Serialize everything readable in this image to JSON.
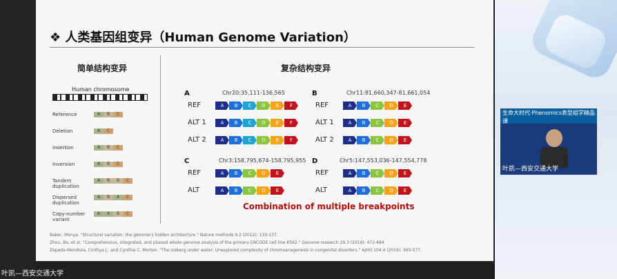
{
  "slide": {
    "title": "❖ 人类基因组变异（Human Genome Variation）",
    "left_heading": "简单结构变异",
    "right_heading": "复杂结构变异",
    "chromosome_label": "Human chromosome",
    "sv_rows": [
      {
        "label": "Reference",
        "segs": [
          "A",
          "B",
          "C"
        ]
      },
      {
        "label": "Deletion",
        "segs": [
          "A",
          "C"
        ]
      },
      {
        "label": "Insertion",
        "segs": [
          "A",
          "B",
          "C"
        ]
      },
      {
        "label": "Inversion",
        "segs": [
          "A",
          "B",
          "C"
        ]
      },
      {
        "label": "Tandem duplication",
        "segs": [
          "A",
          "B",
          "B",
          "C"
        ]
      },
      {
        "label": "Dispersed duplication",
        "segs": [
          "A",
          "B",
          "A",
          "C"
        ]
      },
      {
        "label": "Copy-number variant",
        "segs": [
          "A",
          "A",
          "B",
          "C"
        ]
      }
    ],
    "panels": {
      "A": {
        "coord": "Chr20:35,111-136,565",
        "rows": [
          "REF",
          "ALT 1",
          "ALT 2"
        ]
      },
      "B": {
        "coord": "Chr11:81,660,347-81,661,054",
        "rows": [
          "REF",
          "ALT 1",
          "ALT 2"
        ]
      },
      "C": {
        "coord": "Chr3:158,795,674-158,795,955",
        "rows": [
          "REF",
          "ALT"
        ]
      },
      "D": {
        "coord": "Chr5:147,553,036-147,554,778",
        "rows": [
          "REF",
          "ALT"
        ]
      }
    },
    "combination_text": "Combination of multiple breakpoints",
    "references": [
      "Baker, Monya. \"Structural variation: the genome's hidden architecture.\" Nature methods 9.2 (2012): 133-137.",
      "Zhou, Bo, et al. \"Comprehensive, integrated, and phased whole-genome analysis of the primary ENCODE cell line K562.\" Genome research 29.3 (2019): 472-484",
      "Zepeda-Mendoza, Cinthya J., and Cynthia C. Morton. \"The iceberg under water: Unexplored complexity of chromoanagenesis in congenital disorders.\" AJHG 104.4 (2019): 565-577."
    ]
  },
  "video": {
    "banner": "生命大时代·Phenomics表型组学精品课",
    "caption": "叶凯—西安交通大学"
  },
  "footer_label": "叶凯—西安交通大学",
  "colors": {
    "A": "#1f2d8a",
    "B": "#1e6fd9",
    "C": "#21a3d4",
    "D": "#8bc53f",
    "E": "#f4a31b",
    "F": "#c1131d",
    "highlight": "#b30c0c"
  }
}
